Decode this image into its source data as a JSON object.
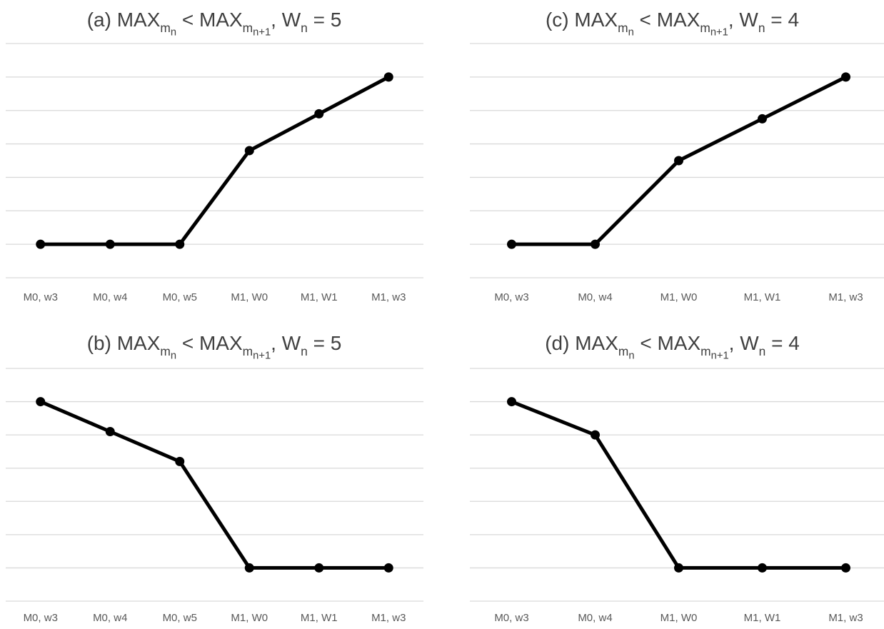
{
  "chart_data": [
    {
      "id": "a",
      "type": "line",
      "title_parts": {
        "prefix": "(a) MAX",
        "s1": "m",
        "s1s": "n",
        "mid": " < MAX",
        "s2": "m",
        "s2s": "n+1",
        "suffix": ", W",
        "s3": "n",
        "tail": " = 5"
      },
      "categories": [
        "M0, w3",
        "M0, w4",
        "M0, w5",
        "M1, W0",
        "M1, W1",
        "M1, w3"
      ],
      "values": [
        1,
        1,
        1,
        3.8,
        4.9,
        6
      ],
      "ylim": [
        0,
        7
      ],
      "grid": true,
      "color": "#000000"
    },
    {
      "id": "b",
      "type": "line",
      "title_parts": {
        "prefix": "(b) MAX",
        "s1": "m",
        "s1s": "n",
        "mid": " < MAX",
        "s2": "m",
        "s2s": "n+1",
        "suffix": ", W",
        "s3": "n",
        "tail": " = 5"
      },
      "categories": [
        "M0, w3",
        "M0, w4",
        "M0, w5",
        "M1, W0",
        "M1, W1",
        "M1, w3"
      ],
      "values": [
        6,
        5.1,
        4.2,
        1,
        1,
        1
      ],
      "ylim": [
        0,
        7
      ],
      "grid": true,
      "color": "#000000"
    },
    {
      "id": "c",
      "type": "line",
      "title_parts": {
        "prefix": "(c) MAX",
        "s1": "m",
        "s1s": "n",
        "mid": " < MAX",
        "s2": "m",
        "s2s": "n+1",
        "suffix": ", W",
        "s3": "n",
        "tail": " = 4"
      },
      "categories": [
        "M0, w3",
        "M0, w4",
        "M1, W0",
        "M1, W1",
        "M1, w3"
      ],
      "values": [
        1,
        1,
        3.5,
        4.75,
        6
      ],
      "ylim": [
        0,
        7
      ],
      "grid": true,
      "color": "#000000"
    },
    {
      "id": "d",
      "type": "line",
      "title_parts": {
        "prefix": "(d) MAX",
        "s1": "m",
        "s1s": "n",
        "mid": " < MAX",
        "s2": "m",
        "s2s": "n+1",
        "suffix": ", W",
        "s3": "n",
        "tail": " = 4"
      },
      "categories": [
        "M0, w3",
        "M0, w4",
        "M1, W0",
        "M1, W1",
        "M1, w3"
      ],
      "values": [
        6,
        5,
        1,
        1,
        1
      ],
      "ylim": [
        0,
        7
      ],
      "grid": true,
      "color": "#000000"
    }
  ]
}
